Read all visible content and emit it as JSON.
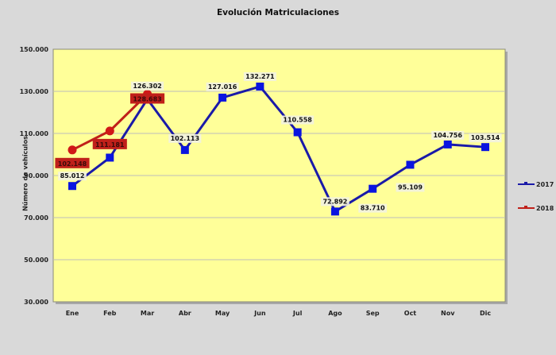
{
  "chart_data": {
    "type": "line",
    "title": "Evolución Matriculaciones",
    "xlabel": "",
    "ylabel": "Número de vehículos",
    "categories": [
      "Ene",
      "Feb",
      "Mar",
      "Abr",
      "May",
      "Jun",
      "Jul",
      "Ago",
      "Sep",
      "Oct",
      "Nov",
      "Dic"
    ],
    "ylim": [
      30000,
      150000
    ],
    "yticks": [
      "30.000",
      "50.000",
      "70.000",
      "90.000",
      "110.000",
      "130.000",
      "150.000"
    ],
    "grid": true,
    "legend_position": "right",
    "series": [
      {
        "name": "2017",
        "color": "#1a1aa8",
        "marker": "square",
        "values": [
          85012,
          98500,
          126302,
          102113,
          127016,
          132271,
          110558,
          72892,
          83710,
          95109,
          104756,
          103514
        ],
        "labels": [
          "85.012",
          "",
          "126.302",
          "102.113",
          "127.016",
          "132.271",
          "110.558",
          "72.892",
          "83.710",
          "95.109",
          "104.756",
          "103.514"
        ]
      },
      {
        "name": "2018",
        "color": "#c0201a",
        "marker": "circle",
        "values": [
          102148,
          111181,
          128683
        ],
        "labels": [
          "102.148",
          "111.181",
          "128.683"
        ]
      }
    ]
  },
  "colors": {
    "plot_bg": "#ffff99",
    "page_bg": "#d9d9d9",
    "grid": "#bcbcbc"
  }
}
